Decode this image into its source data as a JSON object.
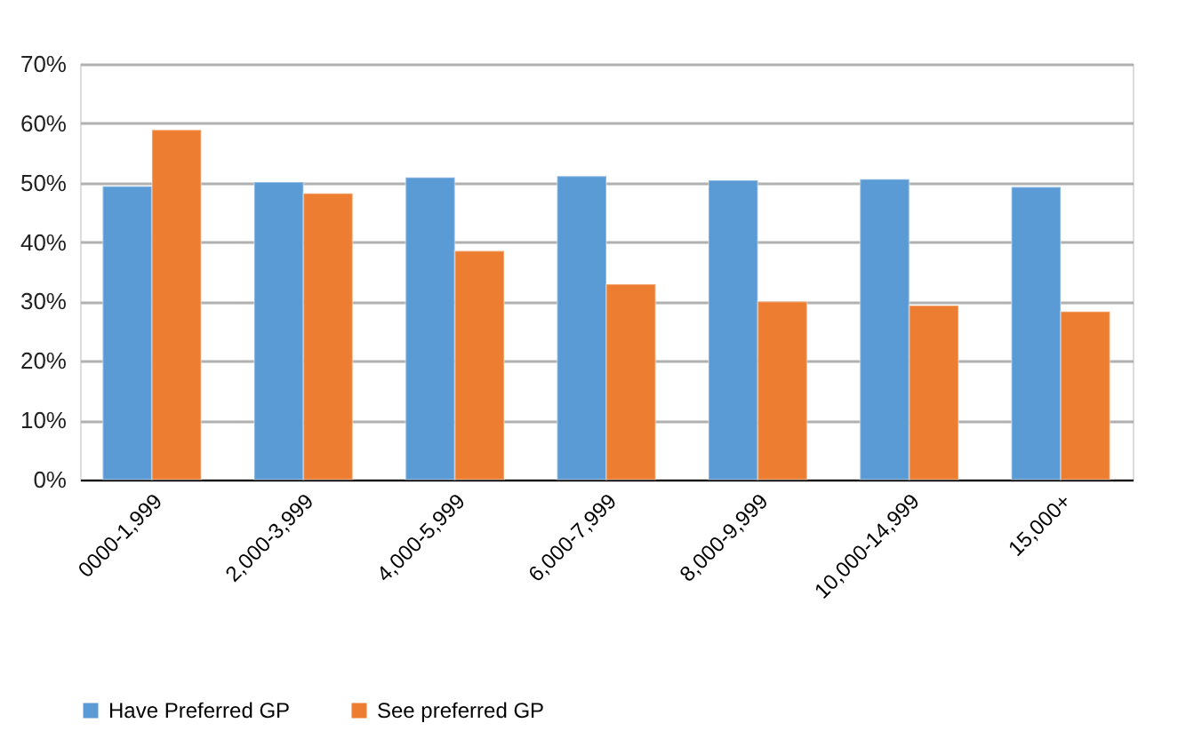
{
  "chart_data": {
    "type": "bar",
    "categories": [
      "0000-1,999",
      "2,000-3,999",
      "4,000-5,999",
      "6,000-7,999",
      "8,000-9,999",
      "10,000-14,999",
      "15,000+"
    ],
    "series": [
      {
        "name": "Have Preferred GP",
        "color": "#5b9bd5",
        "values": [
          49.4,
          50.1,
          50.9,
          51.1,
          50.4,
          50.6,
          49.3
        ]
      },
      {
        "name": "See preferred GP",
        "color": "#ed7d31",
        "values": [
          58.9,
          48.2,
          38.5,
          32.9,
          30.0,
          29.3,
          28.3
        ]
      }
    ],
    "ylim": [
      0,
      70
    ],
    "yticks": [
      {
        "value": 0,
        "label": "0%"
      },
      {
        "value": 10,
        "label": "10%"
      },
      {
        "value": 20,
        "label": "20%"
      },
      {
        "value": 30,
        "label": "30%"
      },
      {
        "value": 40,
        "label": "40%"
      },
      {
        "value": 50,
        "label": "50%"
      },
      {
        "value": 60,
        "label": "60%"
      },
      {
        "value": 70,
        "label": "70%"
      }
    ],
    "grid": "y",
    "legend": "bottom"
  }
}
